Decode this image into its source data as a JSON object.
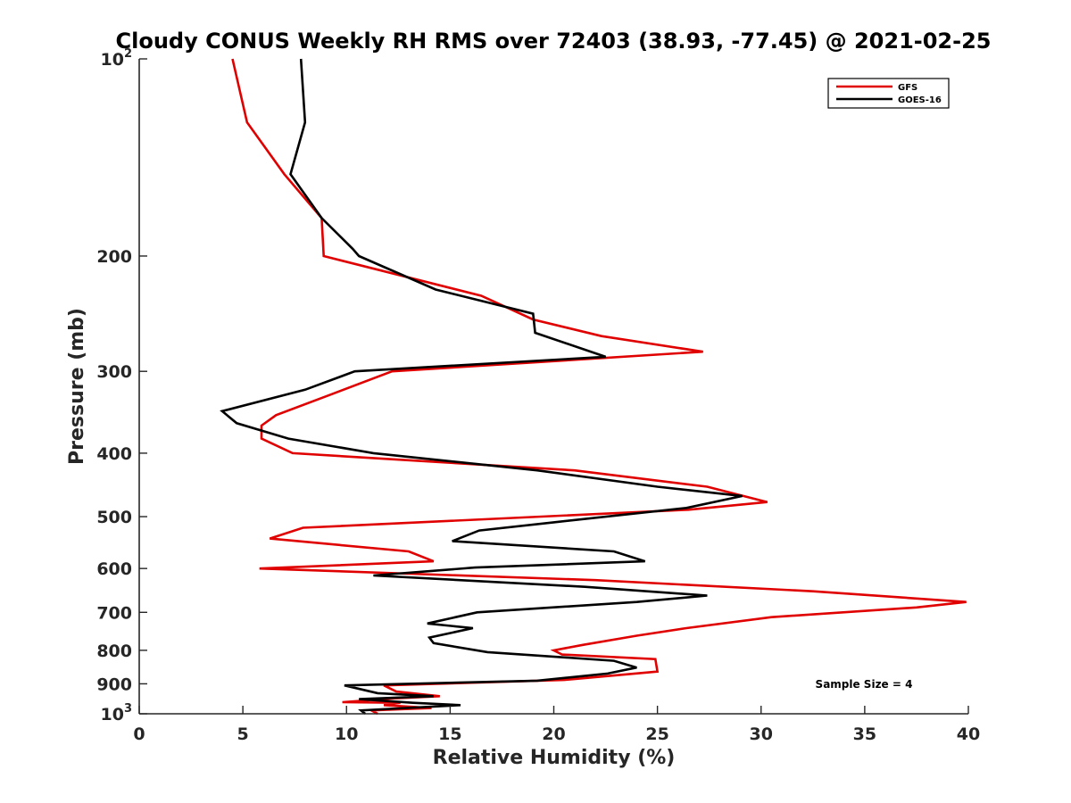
{
  "chart_data": {
    "type": "line",
    "title": "Cloudy CONUS Weekly RH RMS over 72403 (38.93, -77.45) @ 2021-02-25",
    "xlabel": "Relative Humidity (%)",
    "ylabel": "Pressure (mb)",
    "xlim": [
      0,
      40
    ],
    "ylim": [
      100,
      1000
    ],
    "y_scale": "log",
    "y_reversed": true,
    "grid": false,
    "legend_position": "top-right",
    "x_ticks": [
      0,
      5,
      10,
      15,
      20,
      25,
      30,
      35,
      40
    ],
    "x_tick_labels": [
      "0",
      "5",
      "10",
      "15",
      "20",
      "25",
      "30",
      "35",
      "40"
    ],
    "y_ticks": [
      100,
      200,
      300,
      400,
      500,
      600,
      700,
      800,
      900,
      1000
    ],
    "y_tick_labels": [
      {
        "base": "10",
        "exp": "2"
      },
      {
        "base": "200",
        "exp": ""
      },
      {
        "base": "300",
        "exp": ""
      },
      {
        "base": "400",
        "exp": ""
      },
      {
        "base": "500",
        "exp": ""
      },
      {
        "base": "600",
        "exp": ""
      },
      {
        "base": "700",
        "exp": ""
      },
      {
        "base": "800",
        "exp": ""
      },
      {
        "base": "900",
        "exp": ""
      },
      {
        "base": "10",
        "exp": "3"
      }
    ],
    "series": [
      {
        "name": "GFS",
        "color": "#e00000",
        "points": [
          [
            4.5,
            100
          ],
          [
            5.2,
            125
          ],
          [
            7.0,
            150
          ],
          [
            8.8,
            175
          ],
          [
            8.9,
            200
          ],
          [
            16.5,
            230
          ],
          [
            19.0,
            250
          ],
          [
            22.3,
            265
          ],
          [
            27.2,
            280
          ],
          [
            12.2,
            300
          ],
          [
            9.3,
            325
          ],
          [
            6.6,
            350
          ],
          [
            5.9,
            363
          ],
          [
            5.9,
            380
          ],
          [
            7.4,
            400
          ],
          [
            21.0,
            425
          ],
          [
            27.4,
            450
          ],
          [
            30.3,
            475
          ],
          [
            26.5,
            488
          ],
          [
            7.9,
            520
          ],
          [
            6.3,
            540
          ],
          [
            13.0,
            565
          ],
          [
            14.2,
            585
          ],
          [
            5.8,
            600
          ],
          [
            22.0,
            625
          ],
          [
            32.5,
            650
          ],
          [
            39.9,
            675
          ],
          [
            37.5,
            688
          ],
          [
            30.5,
            712
          ],
          [
            26.4,
            740
          ],
          [
            24.0,
            760
          ],
          [
            21.4,
            785
          ],
          [
            20.0,
            800
          ],
          [
            20.4,
            812
          ],
          [
            24.9,
            825
          ],
          [
            25.0,
            862
          ],
          [
            20.5,
            888
          ],
          [
            11.8,
            905
          ],
          [
            12.4,
            925
          ],
          [
            14.5,
            940
          ],
          [
            12.1,
            948
          ],
          [
            9.8,
            960
          ],
          [
            12.6,
            962
          ],
          [
            11.8,
            970
          ],
          [
            14.1,
            980
          ],
          [
            11.2,
            988
          ],
          [
            11.5,
            1000
          ]
        ]
      },
      {
        "name": "GOES-16",
        "color": "#000000",
        "points": [
          [
            7.8,
            100
          ],
          [
            8.0,
            125
          ],
          [
            7.3,
            150
          ],
          [
            8.8,
            175
          ],
          [
            10.3,
            195
          ],
          [
            10.6,
            200
          ],
          [
            14.3,
            225
          ],
          [
            19.0,
            245
          ],
          [
            19.1,
            262
          ],
          [
            22.5,
            285
          ],
          [
            10.4,
            300
          ],
          [
            8.0,
            320
          ],
          [
            4.0,
            345
          ],
          [
            4.7,
            360
          ],
          [
            7.2,
            380
          ],
          [
            11.3,
            400
          ],
          [
            19.2,
            425
          ],
          [
            25.0,
            450
          ],
          [
            29.1,
            465
          ],
          [
            26.4,
            485
          ],
          [
            20.0,
            510
          ],
          [
            16.4,
            525
          ],
          [
            15.1,
            545
          ],
          [
            22.9,
            565
          ],
          [
            24.4,
            585
          ],
          [
            16.2,
            598
          ],
          [
            11.3,
            615
          ],
          [
            21.5,
            640
          ],
          [
            27.4,
            660
          ],
          [
            24.0,
            675
          ],
          [
            16.3,
            700
          ],
          [
            13.9,
            728
          ],
          [
            16.1,
            740
          ],
          [
            14.0,
            765
          ],
          [
            14.2,
            780
          ],
          [
            16.8,
            805
          ],
          [
            22.9,
            830
          ],
          [
            24.0,
            850
          ],
          [
            22.6,
            868
          ],
          [
            19.2,
            890
          ],
          [
            9.9,
            905
          ],
          [
            11.5,
            930
          ],
          [
            14.2,
            940
          ],
          [
            10.6,
            950
          ],
          [
            13.2,
            962
          ],
          [
            15.5,
            970
          ],
          [
            10.7,
            988
          ],
          [
            10.9,
            1000
          ]
        ]
      }
    ],
    "annotations": [
      {
        "text": "Sample Size = 4"
      }
    ]
  }
}
